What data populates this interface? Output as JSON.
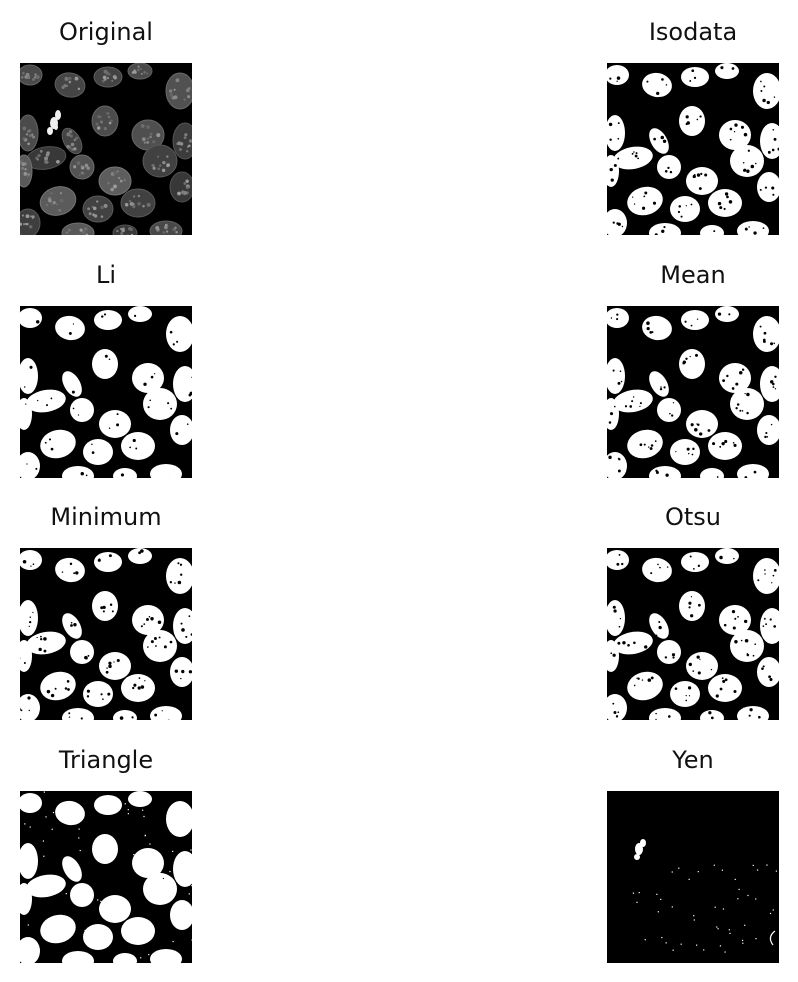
{
  "figure": {
    "panels": [
      {
        "title": "Original",
        "kind": "grayscale"
      },
      {
        "title": "Isodata",
        "kind": "binary"
      },
      {
        "title": "Li",
        "kind": "binary"
      },
      {
        "title": "Mean",
        "kind": "binary"
      },
      {
        "title": "Minimum",
        "kind": "binary"
      },
      {
        "title": "Otsu",
        "kind": "binary"
      },
      {
        "title": "Triangle",
        "kind": "binary"
      },
      {
        "title": "Yen",
        "kind": "sparse"
      }
    ]
  },
  "colors": {
    "background": "#ffffff",
    "foreground": "#ffffff",
    "image_background": "#000000"
  }
}
